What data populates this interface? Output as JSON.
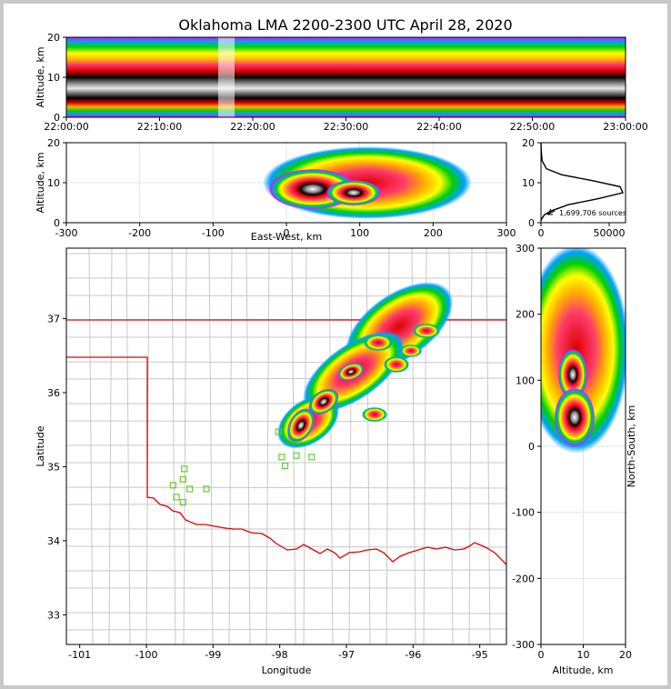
{
  "figure": {
    "title": "Oklahoma LMA 2200-2300 UTC April 28, 2020"
  },
  "chart_data": [
    {
      "type": "heatmap",
      "panel": "altitude-time",
      "xlabel": "",
      "ylabel": "Altitude, km",
      "x_ticks": [
        "22:00:00",
        "22:10:00",
        "22:20:00",
        "22:30:00",
        "22:40:00",
        "22:50:00",
        "23:00:00"
      ],
      "xlim": [
        "22:00:00",
        "23:00:00"
      ],
      "ylim": [
        0,
        20
      ],
      "y_ticks": [
        0,
        10,
        20
      ],
      "band_core_altitude_km": [
        5,
        10
      ],
      "band_top_altitude_km": 20,
      "gap_time": "22:17:00"
    },
    {
      "type": "heatmap",
      "panel": "east-west-altitude",
      "xlabel": "East-West, km",
      "ylabel": "Altitude, km",
      "xlim": [
        -300,
        300
      ],
      "ylim": [
        0,
        20
      ],
      "x_ticks": [
        -300,
        -200,
        -100,
        0,
        100,
        200,
        300
      ],
      "y_ticks": [
        0,
        10,
        20
      ],
      "grid": true
    },
    {
      "type": "line",
      "panel": "altitude-histogram",
      "xlim": [
        0,
        62000
      ],
      "ylim": [
        0,
        20
      ],
      "x_ticks": [
        0,
        50000
      ],
      "y_ticks": [
        0,
        10,
        20
      ],
      "annotation": "1,699,706 sources",
      "series": [
        {
          "x": [
            0,
            600,
            2500,
            8000,
            20000,
            42000,
            60000,
            58000,
            38000,
            15000,
            4000,
            800,
            200,
            0
          ],
          "y": [
            0.5,
            1.0,
            2.0,
            3.0,
            4.5,
            6.0,
            7.5,
            9.0,
            10.5,
            12.0,
            13.5,
            15.5,
            18.0,
            20.0
          ]
        }
      ]
    },
    {
      "type": "heatmap",
      "panel": "plan-view-map",
      "xlabel": "Longitude",
      "ylabel": "Latitude",
      "xlim": [
        -101.2,
        -94.6
      ],
      "ylim": [
        32.6,
        37.95
      ],
      "x_ticks": [
        -101,
        -100,
        -99,
        -98,
        -97,
        -96,
        -95
      ],
      "y_ticks": [
        33,
        34,
        35,
        36,
        37
      ],
      "state_border_color": "#e00000",
      "county_line_color": "#c8c8c8",
      "station_color": "#66cc33",
      "stations": [
        [
          -99.43,
          34.97
        ],
        [
          -99.6,
          34.75
        ],
        [
          -99.45,
          34.83
        ],
        [
          -99.35,
          34.7
        ],
        [
          -99.55,
          34.59
        ],
        [
          -99.45,
          34.52
        ],
        [
          -99.1,
          34.7
        ],
        [
          -98.02,
          35.47
        ],
        [
          -97.97,
          35.13
        ],
        [
          -97.92,
          35.01
        ],
        [
          -97.75,
          35.15
        ],
        [
          -97.52,
          35.13
        ]
      ]
    },
    {
      "type": "heatmap",
      "panel": "altitude-north-south",
      "xlabel": "Altitude, km",
      "ylabel": "North-South, km",
      "xlim": [
        0,
        20
      ],
      "ylim": [
        -300,
        300
      ],
      "x_ticks": [
        0,
        10,
        20
      ],
      "y_ticks": [
        -300,
        -200,
        -100,
        0,
        100,
        200,
        300
      ],
      "grid": true
    }
  ]
}
